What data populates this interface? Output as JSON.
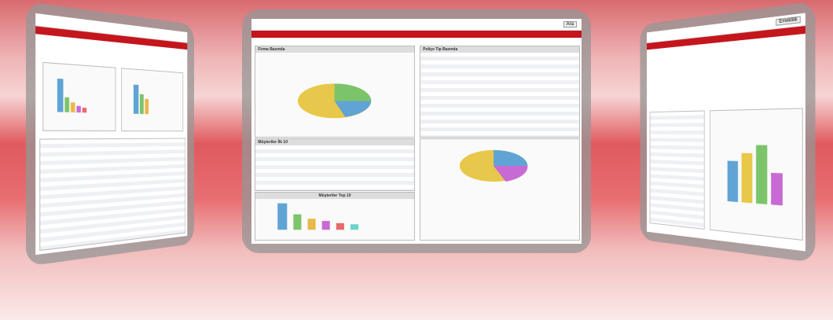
{
  "center": {
    "panels": [
      "Firma Bazında",
      "Poliçe Tip Bazında",
      "Müşteriler İlk 10",
      "Müşteriler Top 10"
    ]
  },
  "right": {
    "button": "Emeklilik"
  }
}
